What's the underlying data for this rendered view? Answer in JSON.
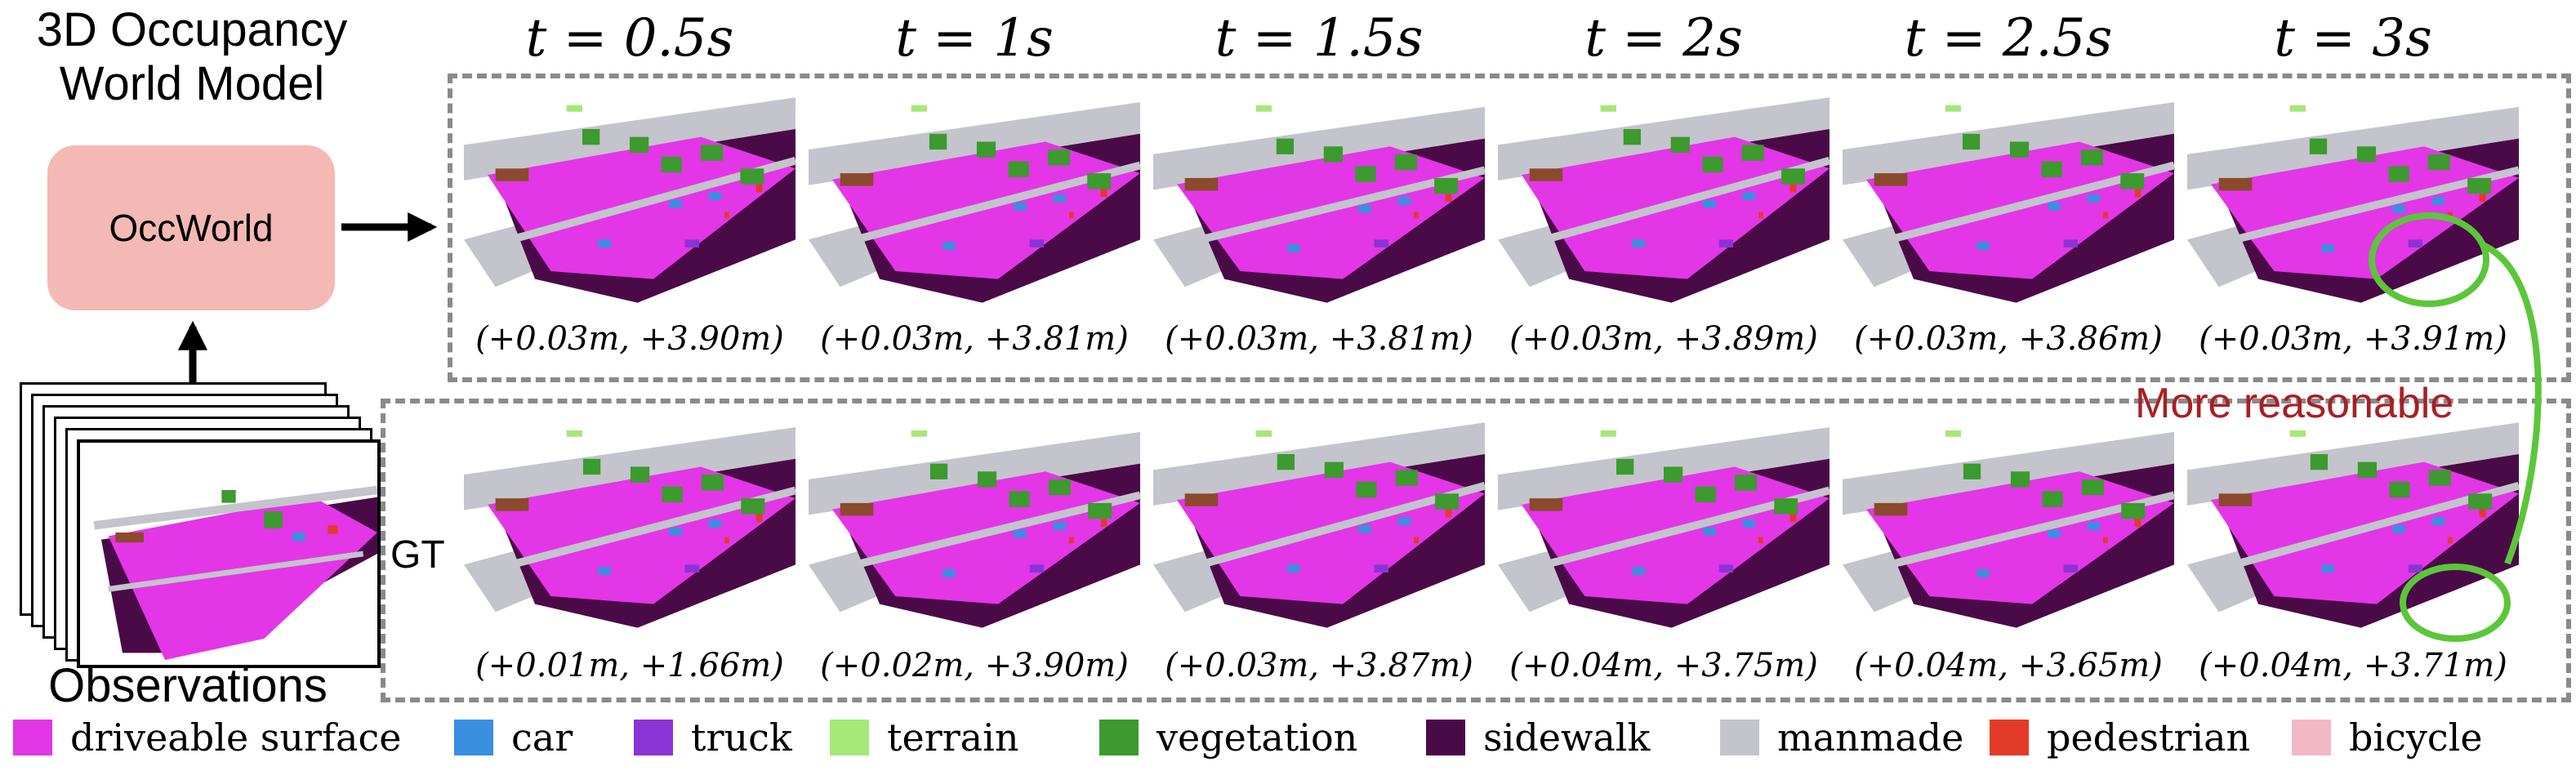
{
  "left_panel": {
    "title_line1": "3D Occupancy",
    "title_line2": "World Model",
    "model_name": "OccWorld",
    "observations_label": "Observations"
  },
  "rows": {
    "gt_label": "GT"
  },
  "timesteps": [
    "t = 0.5s",
    "t = 1s",
    "t = 1.5s",
    "t = 2s",
    "t = 2.5s",
    "t = 3s"
  ],
  "pred_coords": [
    "(+0.03m, +3.90m)",
    "(+0.03m, +3.81m)",
    "(+0.03m, +3.81m)",
    "(+0.03m, +3.89m)",
    "(+0.03m, +3.86m)",
    "(+0.03m, +3.91m)"
  ],
  "gt_coords": [
    "(+0.01m, +1.66m)",
    "(+0.02m, +3.90m)",
    "(+0.03m, +3.87m)",
    "(+0.04m, +3.75m)",
    "(+0.04m, +3.65m)",
    "(+0.04m, +3.71m)"
  ],
  "annotation": {
    "text": "More reasonable",
    "highlight_color": "#5cc63a",
    "text_color": "#a81f24"
  },
  "legend": [
    {
      "label": "driveable surface",
      "color": "#e336e6"
    },
    {
      "label": "car",
      "color": "#3a8fe0"
    },
    {
      "label": "truck",
      "color": "#8a34d6"
    },
    {
      "label": "terrain",
      "color": "#a6e878"
    },
    {
      "label": "vegetation",
      "color": "#3c9a2e"
    },
    {
      "label": "sidewalk",
      "color": "#4a0a48"
    },
    {
      "label": "manmade",
      "color": "#c4c4cc"
    },
    {
      "label": "pedestrian",
      "color": "#e23b2a"
    },
    {
      "label": "bicycle",
      "color": "#f2b8c6"
    }
  ]
}
